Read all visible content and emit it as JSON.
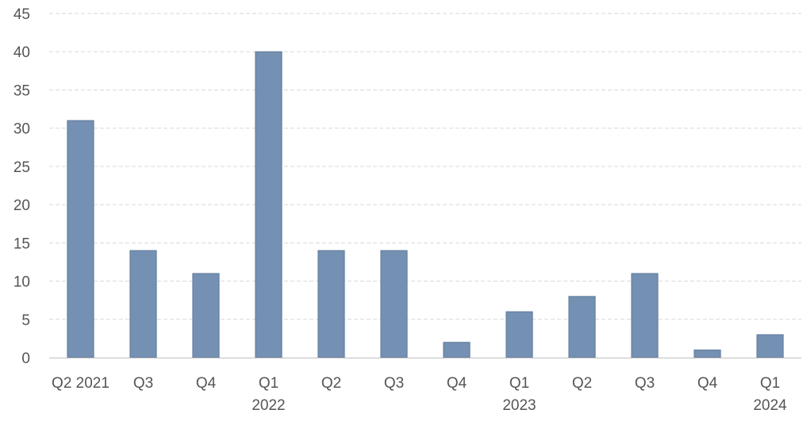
{
  "chart_data": {
    "type": "bar",
    "categories": [
      [
        "Q2 2021"
      ],
      [
        "Q3"
      ],
      [
        "Q4"
      ],
      [
        "Q1",
        "2022"
      ],
      [
        "Q2"
      ],
      [
        "Q3"
      ],
      [
        "Q4"
      ],
      [
        "Q1",
        "2023"
      ],
      [
        "Q2"
      ],
      [
        "Q3"
      ],
      [
        "Q4"
      ],
      [
        "Q1",
        "2024"
      ]
    ],
    "values": [
      31,
      14,
      11,
      40,
      14,
      14,
      2,
      6,
      8,
      11,
      1,
      3
    ],
    "title": "",
    "xlabel": "",
    "ylabel": "",
    "ylim": [
      0,
      45
    ],
    "yticks": [
      0,
      5,
      10,
      15,
      20,
      25,
      30,
      35,
      40,
      45
    ],
    "grid": true,
    "bar_color": "#7490b2",
    "bar_edge_color": "#5f7a9c",
    "grid_color": "#d9d9d9",
    "text_color": "#555555"
  }
}
